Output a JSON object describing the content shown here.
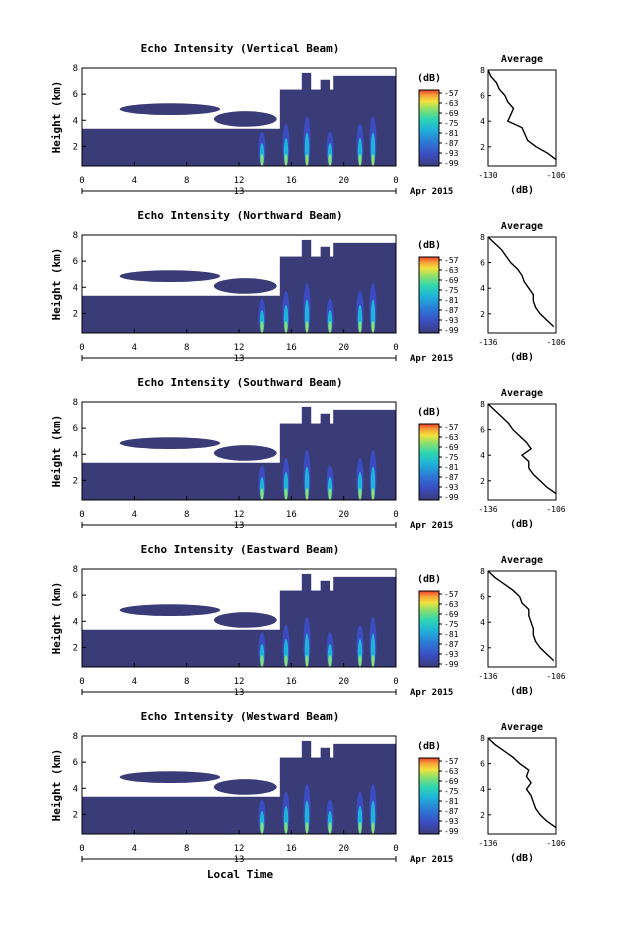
{
  "chart_data": {
    "type": "heatmap",
    "xlabel": "Local Time",
    "x_ticks": [
      "0",
      "4",
      "8",
      "12",
      "16",
      "20",
      "0"
    ],
    "day_label": "13",
    "date_label": "Apr 2015",
    "colorbar": {
      "unit": "(dB)",
      "ticks": [
        "-57",
        "-63",
        "-69",
        "-75",
        "-81",
        "-87",
        "-93",
        "-99"
      ]
    },
    "panels": [
      {
        "title": "Echo Intensity (Vertical Beam)",
        "ylabel": "Height (km)",
        "y_ticks": [
          "2",
          "4",
          "6",
          "8"
        ],
        "avg": {
          "title": "Average",
          "xlabel": "(dB)",
          "x_ticks": [
            "-130",
            "-106"
          ],
          "y_ticks": [
            "2",
            "4",
            "6",
            "8"
          ],
          "heights": [
            1.0,
            1.5,
            2.0,
            2.5,
            3.0,
            3.5,
            4.0,
            4.5,
            5.0,
            5.5,
            6.0,
            6.5,
            7.0,
            7.5,
            8.0
          ],
          "values": [
            -106,
            -109,
            -113,
            -116,
            -117,
            -118,
            -123,
            -122,
            -121,
            -123,
            -124,
            -126,
            -127,
            -129,
            -130
          ]
        }
      },
      {
        "title": "Echo Intensity (Northward Beam)",
        "ylabel": "Height (km)",
        "y_ticks": [
          "2",
          "4",
          "6",
          "8"
        ],
        "avg": {
          "title": "Average",
          "xlabel": "(dB)",
          "x_ticks": [
            "-136",
            "-106"
          ],
          "y_ticks": [
            "2",
            "4",
            "6",
            "8"
          ],
          "heights": [
            1.0,
            1.5,
            2.0,
            2.5,
            3.0,
            3.5,
            4.0,
            4.5,
            5.0,
            5.5,
            6.0,
            6.5,
            7.0,
            7.5,
            8.0
          ],
          "values": [
            -107,
            -110,
            -113,
            -115,
            -116,
            -116,
            -118,
            -120,
            -121,
            -123,
            -126,
            -128,
            -130,
            -133,
            -136
          ]
        }
      },
      {
        "title": "Echo Intensity (Southward Beam)",
        "ylabel": "Height (km)",
        "y_ticks": [
          "2",
          "4",
          "6",
          "8"
        ],
        "avg": {
          "title": "Average",
          "xlabel": "(dB)",
          "x_ticks": [
            "-136",
            "-106"
          ],
          "y_ticks": [
            "2",
            "4",
            "6",
            "8"
          ],
          "heights": [
            1.0,
            1.5,
            2.0,
            2.5,
            3.0,
            3.5,
            4.0,
            4.5,
            5.0,
            5.5,
            6.0,
            6.5,
            7.0,
            7.5,
            8.0
          ],
          "values": [
            -106,
            -110,
            -113,
            -116,
            -118,
            -118,
            -121,
            -117,
            -119,
            -122,
            -125,
            -127,
            -130,
            -133,
            -136
          ]
        }
      },
      {
        "title": "Echo Intensity (Eastward Beam)",
        "ylabel": "Height (km)",
        "y_ticks": [
          "2",
          "4",
          "6",
          "8"
        ],
        "avg": {
          "title": "Average",
          "xlabel": "(dB)",
          "x_ticks": [
            "-136",
            "-106"
          ],
          "y_ticks": [
            "2",
            "4",
            "6",
            "8"
          ],
          "heights": [
            1.0,
            1.5,
            2.0,
            2.5,
            3.0,
            3.5,
            4.0,
            4.5,
            5.0,
            5.5,
            6.0,
            6.5,
            7.0,
            7.5,
            8.0
          ],
          "values": [
            -107,
            -110,
            -113,
            -115,
            -116,
            -116,
            -117,
            -118,
            -118,
            -121,
            -122,
            -125,
            -129,
            -133,
            -136
          ]
        }
      },
      {
        "title": "Echo Intensity (Westward Beam)",
        "ylabel": "Height (km)",
        "y_ticks": [
          "2",
          "4",
          "6",
          "8"
        ],
        "avg": {
          "title": "Average",
          "xlabel": "(dB)",
          "x_ticks": [
            "-136",
            "-106"
          ],
          "y_ticks": [
            "2",
            "4",
            "6",
            "8"
          ],
          "heights": [
            1.0,
            1.5,
            2.0,
            2.5,
            3.0,
            3.5,
            4.0,
            4.5,
            5.0,
            5.5,
            6.0,
            6.5,
            7.0,
            7.5,
            8.0
          ],
          "values": [
            -106,
            -110,
            -113,
            -115,
            -116,
            -117,
            -119,
            -117,
            -119,
            -118,
            -122,
            -125,
            -129,
            -133,
            -136
          ]
        }
      }
    ],
    "colors": {
      "background_echo": "#3a3c78",
      "palette": [
        "#3a3c78",
        "#3b4cc0",
        "#2c7bd6",
        "#1fb3d9",
        "#2fd6b0",
        "#8ee06a",
        "#f2e23c",
        "#f7a23a",
        "#ee3f2c"
      ]
    }
  }
}
